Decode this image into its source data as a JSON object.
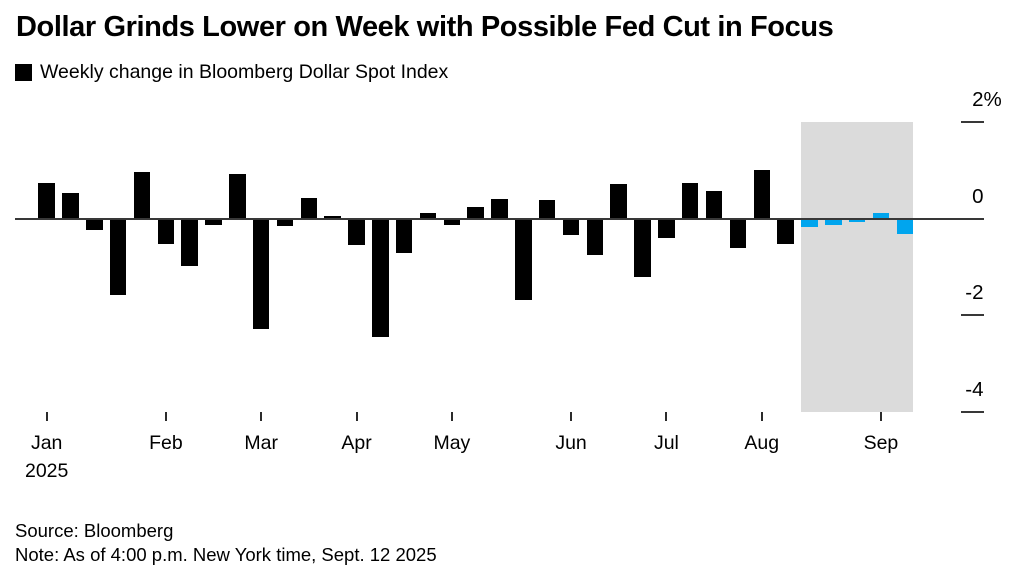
{
  "header": {
    "title": "Dollar Grinds Lower on Week with Possible Fed Cut in Focus",
    "legend_label": "Weekly change in Bloomberg Dollar Spot Index"
  },
  "chart_data": {
    "type": "bar",
    "title": "Dollar Grinds Lower on Week with Possible Fed Cut in Focus",
    "series_name": "Weekly change in Bloomberg Dollar Spot Index",
    "unit": "%",
    "grid": false,
    "ylim": [
      -4.6,
      2.5
    ],
    "values": [
      0.73,
      0.52,
      -0.23,
      -1.59,
      0.97,
      -0.52,
      -0.98,
      -0.14,
      0.93,
      -2.29,
      -0.16,
      0.43,
      0.05,
      -0.55,
      -2.45,
      -0.72,
      0.12,
      -0.14,
      0.23,
      0.4,
      -1.69,
      0.38,
      -0.34,
      -0.75,
      0.71,
      -1.22,
      -0.41,
      0.74,
      0.56,
      -0.62,
      1.01,
      -0.52,
      -0.17,
      -0.14,
      -0.07,
      0.12,
      -0.33
    ],
    "bar_color": "#000000",
    "yticks": [
      {
        "value": 2,
        "label": "2%"
      },
      {
        "value": 0,
        "label": "0"
      },
      {
        "value": -2,
        "label": "-2"
      },
      {
        "value": -4,
        "label": "-4"
      }
    ],
    "xticks": [
      {
        "label": "Jan",
        "bar_index": 0,
        "sublabel": "2025"
      },
      {
        "label": "Feb",
        "bar_index": 5
      },
      {
        "label": "Mar",
        "bar_index": 9
      },
      {
        "label": "Apr",
        "bar_index": 13
      },
      {
        "label": "May",
        "bar_index": 17
      },
      {
        "label": "Jun",
        "bar_index": 22
      },
      {
        "label": "Jul",
        "bar_index": 26
      },
      {
        "label": "Aug",
        "bar_index": 30
      },
      {
        "label": "Sep",
        "bar_index": 35
      }
    ],
    "highlight": {
      "start_bar_index": 32,
      "end_bar_index": 36,
      "band_color": "#DBDBDB",
      "bar_color": "#00A5EE",
      "band_value_range": [
        2,
        -4
      ]
    }
  },
  "footer": {
    "source": "Source: Bloomberg",
    "note": "Note: As of 4:00 p.m. New York time, Sept. 12 2025"
  }
}
